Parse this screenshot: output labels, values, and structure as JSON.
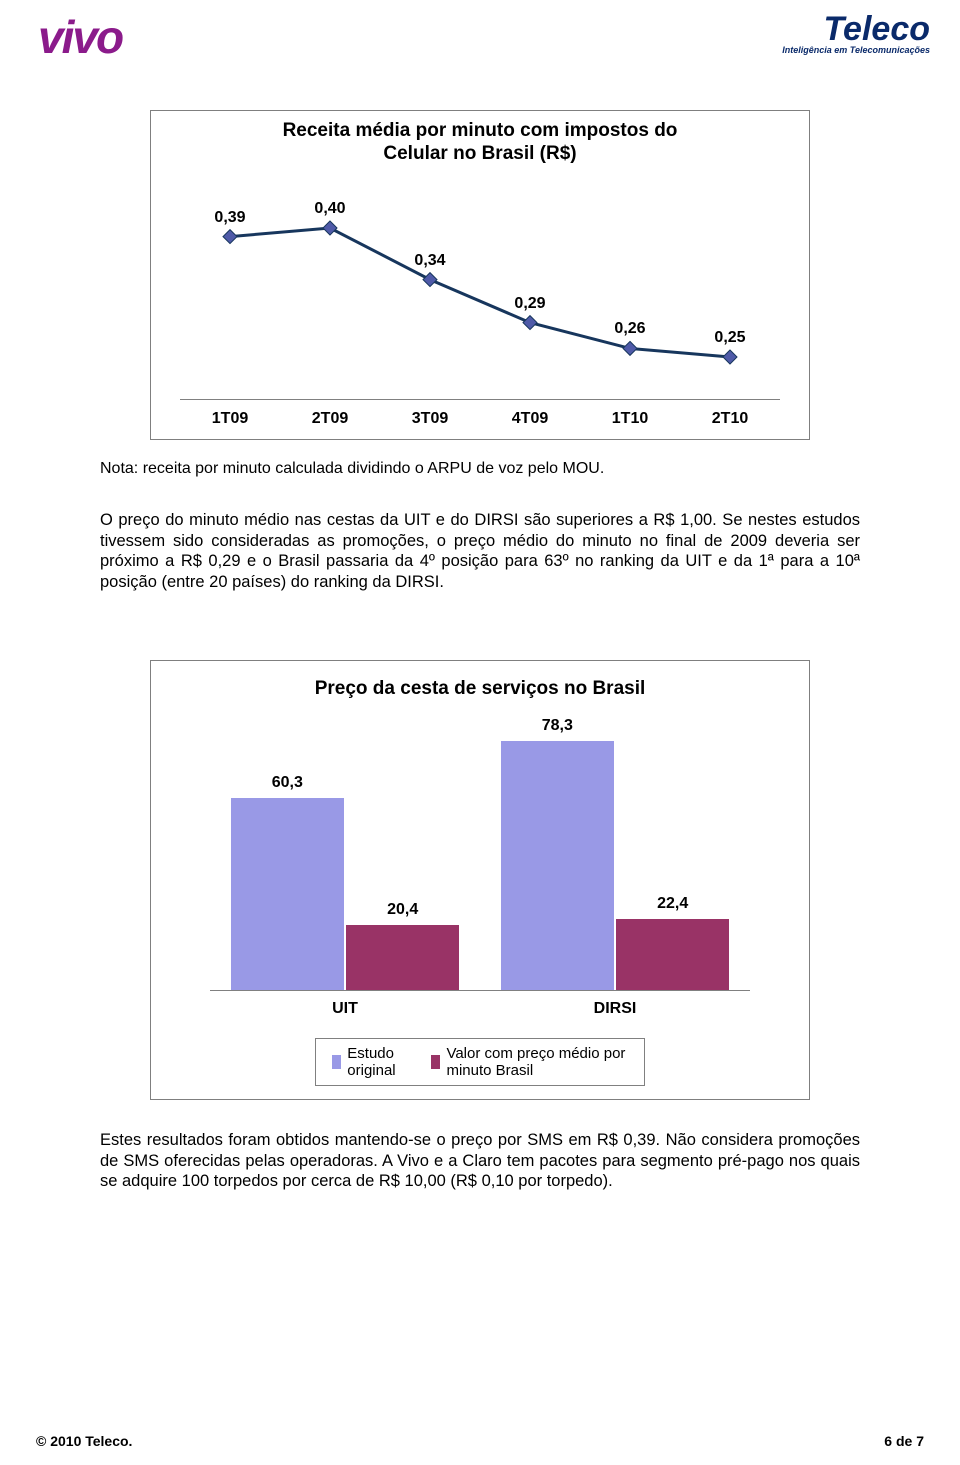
{
  "logos": {
    "vivo": "vivo",
    "teleco": "Teleco",
    "teleco_tag": "Inteligência em Telecomunicações"
  },
  "chart1": {
    "type": "line",
    "title_l1": "Receita média por minuto com impostos do",
    "title_l2": "Celular no Brasil (R$)",
    "categories": [
      "1T09",
      "2T09",
      "3T09",
      "4T09",
      "1T10",
      "2T10"
    ],
    "values": [
      0.39,
      0.4,
      0.34,
      0.29,
      0.26,
      0.25
    ],
    "labels": [
      "0,39",
      "0,40",
      "0,34",
      "0,29",
      "0,26",
      "0,25"
    ],
    "line_color": "#17365d",
    "marker_color": "#4f5aa8",
    "marker_size": 7,
    "line_width": 3,
    "label_fontsize": 16,
    "label_fontweight": "bold",
    "title_fontsize": 19,
    "border_color": "#7f7f7f",
    "background_color": "#ffffff",
    "ymin": 0.2,
    "ymax": 0.45
  },
  "note": "Nota: receita por minuto calculada dividindo o ARPU de voz pelo MOU.",
  "para1": "O preço do minuto médio nas cestas da UIT e do DIRSI são superiores a R$ 1,00. Se nestes estudos tivessem sido consideradas as promoções, o preço médio do minuto no final de 2009 deveria ser próximo a R$ 0,29 e o Brasil passaria da 4º posição para 63º no ranking da UIT e da 1ª para a 10ª posição (entre 20 países) do ranking da DIRSI.",
  "chart2": {
    "type": "bar",
    "title": "Preço da cesta de serviços no Brasil",
    "groups": [
      "UIT",
      "DIRSI"
    ],
    "series": [
      {
        "name": "Estudo original",
        "color": "#9999e6",
        "values": [
          60.3,
          78.3
        ],
        "labels": [
          "60,3",
          "78,3"
        ]
      },
      {
        "name": "Valor com preço médio por minuto Brasil",
        "color": "#993366",
        "values": [
          20.4,
          22.4
        ],
        "labels": [
          "20,4",
          "22,4"
        ]
      }
    ],
    "ymax": 85,
    "bar_width_ratio": 0.21,
    "label_fontsize": 16,
    "title_fontsize": 19,
    "border_color": "#7f7f7f",
    "legend_border": "#808080",
    "background_color": "#ffffff"
  },
  "para2": "Estes resultados foram obtidos mantendo-se o preço por SMS em R$ 0,39. Não considera promoções de SMS oferecidas pelas operadoras. A Vivo e a Claro tem pacotes para segmento pré-pago nos quais se adquire 100 torpedos por  cerca de R$ 10,00 (R$ 0,10 por torpedo).",
  "footer": {
    "left": "© 2010 Teleco.",
    "right": "6 de 7"
  }
}
